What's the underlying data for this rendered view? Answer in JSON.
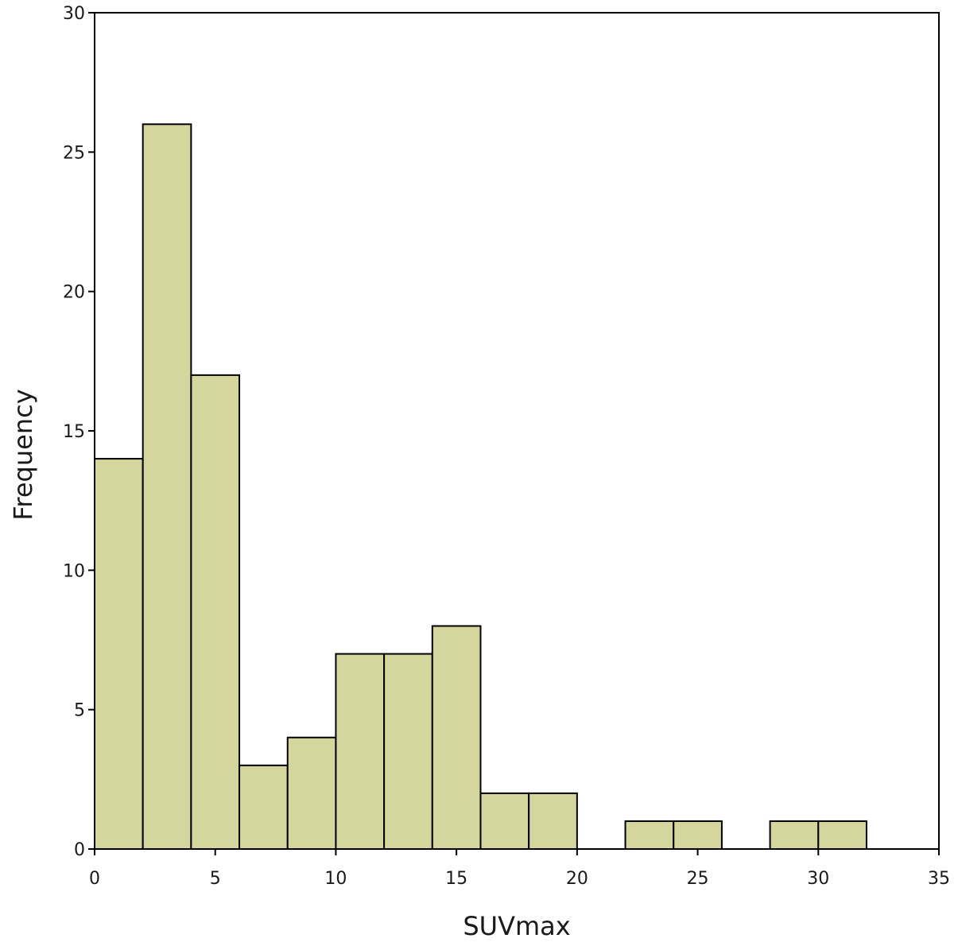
{
  "chart_data": {
    "type": "bar",
    "title": "",
    "xlabel": "SUVmax",
    "ylabel": "Frequency",
    "bin_width": 2,
    "bins": [
      {
        "start": 0,
        "end": 2,
        "count": 14
      },
      {
        "start": 2,
        "end": 4,
        "count": 26
      },
      {
        "start": 4,
        "end": 6,
        "count": 17
      },
      {
        "start": 6,
        "end": 8,
        "count": 3
      },
      {
        "start": 8,
        "end": 10,
        "count": 4
      },
      {
        "start": 10,
        "end": 12,
        "count": 7
      },
      {
        "start": 12,
        "end": 14,
        "count": 7
      },
      {
        "start": 14,
        "end": 16,
        "count": 8
      },
      {
        "start": 16,
        "end": 18,
        "count": 2
      },
      {
        "start": 18,
        "end": 20,
        "count": 2
      },
      {
        "start": 20,
        "end": 22,
        "count": 0
      },
      {
        "start": 22,
        "end": 24,
        "count": 1
      },
      {
        "start": 24,
        "end": 26,
        "count": 1
      },
      {
        "start": 26,
        "end": 28,
        "count": 0
      },
      {
        "start": 28,
        "end": 30,
        "count": 1
      },
      {
        "start": 30,
        "end": 32,
        "count": 1
      }
    ],
    "xlim": [
      0,
      35
    ],
    "ylim": [
      0,
      30
    ],
    "xticks": [
      0,
      5,
      10,
      15,
      20,
      25,
      30,
      35
    ],
    "yticks": [
      0,
      5,
      10,
      15,
      20,
      25,
      30
    ],
    "bar_color": "#d4d69e",
    "bar_edge_color": "#000000",
    "grid": false,
    "legend": "none"
  }
}
